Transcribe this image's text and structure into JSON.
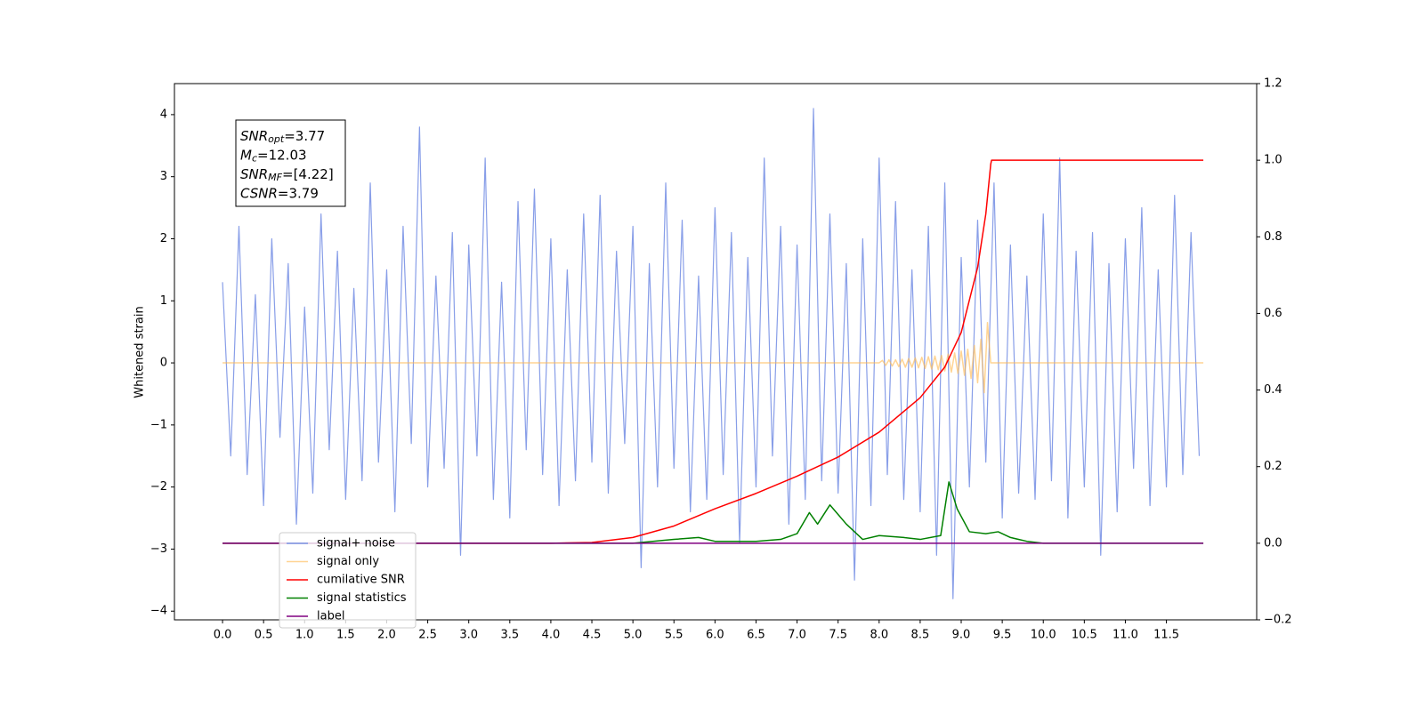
{
  "chart_data": {
    "type": "line",
    "ylabel": "Whitened strain",
    "annotation_lines": [
      {
        "main": "SNR",
        "sub": "opt",
        "rest": "=3.77"
      },
      {
        "main": "M",
        "sub": "c",
        "rest": "=12.03"
      },
      {
        "main": "SNR",
        "sub": "MF",
        "rest": "=[4.22]"
      },
      {
        "main": "CSNR",
        "rest": "=3.79"
      }
    ],
    "xlim": [
      -0.586,
      12.6
    ],
    "ylim": [
      -4.14,
      4.5
    ],
    "y2lim": [
      -0.2,
      1.2
    ],
    "xticks": [
      {
        "value": 0,
        "label": "0.0"
      },
      0.5,
      {
        "value": 1,
        "label": "1.0"
      },
      1.5,
      {
        "value": 2,
        "label": "2.0"
      },
      2.5,
      {
        "value": 3,
        "label": "3.0"
      },
      3.5,
      {
        "value": 4,
        "label": "4.0"
      },
      4.5,
      {
        "value": 5,
        "label": "5.0"
      },
      5.5,
      {
        "value": 6,
        "label": "6.0"
      },
      6.5,
      {
        "value": 7,
        "label": "7.0"
      },
      7.5,
      {
        "value": 8,
        "label": "8.0"
      },
      8.5,
      {
        "value": 9,
        "label": "9.0"
      },
      9.5,
      {
        "value": 10,
        "label": "10.0"
      },
      10.5,
      {
        "value": 11,
        "label": "11.0"
      },
      11.5
    ],
    "yticks": [
      {
        "value": -4,
        "label": "−4"
      },
      {
        "value": -3,
        "label": "−3"
      },
      {
        "value": -2,
        "label": "−2"
      },
      {
        "value": -1,
        "label": "−1"
      },
      0,
      1,
      2,
      3,
      4
    ],
    "y2ticks": [
      {
        "value": -0.2,
        "label": "−0.2"
      },
      {
        "value": 0,
        "label": "0.0"
      },
      0.2,
      0.4,
      0.6,
      0.8,
      {
        "value": 1,
        "label": "1.0"
      },
      1.2
    ],
    "series": [
      {
        "name": "signal+ noise",
        "color": "#7b93e6",
        "x": [
          0,
          0.1,
          0.2,
          0.3,
          0.4,
          0.5,
          0.6,
          0.7,
          0.8,
          0.9,
          1,
          1.1,
          1.2,
          1.3,
          1.4,
          1.5,
          1.6,
          1.7,
          1.8,
          1.9,
          2,
          2.1,
          2.2,
          2.3,
          2.4,
          2.5,
          2.6,
          2.7,
          2.8,
          2.9,
          3,
          3.1,
          3.2,
          3.3,
          3.4,
          3.5,
          3.6,
          3.7,
          3.8,
          3.9,
          4,
          4.1,
          4.2,
          4.3,
          4.4,
          4.5,
          4.6,
          4.7,
          4.8,
          4.9,
          5,
          5.1,
          5.2,
          5.3,
          5.4,
          5.5,
          5.6,
          5.7,
          5.8,
          5.9,
          6,
          6.1,
          6.2,
          6.3,
          6.4,
          6.5,
          6.6,
          6.7,
          6.8,
          6.9,
          7,
          7.1,
          7.2,
          7.3,
          7.4,
          7.5,
          7.6,
          7.7,
          7.8,
          7.9,
          8,
          8.1,
          8.2,
          8.3,
          8.4,
          8.5,
          8.6,
          8.7,
          8.8,
          8.9,
          9,
          9.1,
          9.2,
          9.3,
          9.4,
          9.5,
          9.6,
          9.7,
          9.8,
          9.9,
          10,
          10.1,
          10.2,
          10.3,
          10.4,
          10.5,
          10.6,
          10.7,
          10.8,
          10.9,
          11,
          11.1,
          11.2,
          11.3,
          11.4,
          11.5,
          11.6,
          11.7,
          11.8,
          11.9
        ],
        "values": [
          1.3,
          -1.5,
          2.2,
          -1.8,
          1.1,
          -2.3,
          2.0,
          -1.2,
          1.6,
          -2.6,
          0.9,
          -2.1,
          2.4,
          -1.4,
          1.8,
          -2.2,
          1.2,
          -1.9,
          2.9,
          -1.6,
          1.5,
          -2.4,
          2.2,
          -1.3,
          3.8,
          -2.0,
          1.4,
          -1.7,
          2.1,
          -3.1,
          1.9,
          -1.5,
          3.3,
          -2.2,
          1.3,
          -2.5,
          2.6,
          -1.4,
          2.8,
          -1.8,
          2.0,
          -2.3,
          1.5,
          -1.9,
          2.4,
          -1.6,
          2.7,
          -2.1,
          1.8,
          -1.3,
          2.2,
          -3.3,
          1.6,
          -2.0,
          2.9,
          -1.7,
          2.3,
          -2.4,
          1.4,
          -2.2,
          2.5,
          -1.8,
          2.1,
          -2.9,
          1.7,
          -2.0,
          3.3,
          -1.5,
          2.2,
          -2.6,
          1.9,
          -2.2,
          4.1,
          -1.9,
          2.4,
          -2.1,
          1.6,
          -3.5,
          2.0,
          -2.3,
          3.3,
          -1.8,
          2.6,
          -2.2,
          1.5,
          -2.4,
          2.2,
          -3.1,
          2.9,
          -3.8,
          1.7,
          -2.0,
          2.3,
          -1.6,
          2.9,
          -2.5,
          1.9,
          -2.1,
          1.4,
          -2.2,
          2.4,
          -1.9,
          3.3,
          -2.5,
          1.8,
          -2.0,
          2.1,
          -3.1,
          1.6,
          -2.4,
          2.0,
          -1.7,
          2.5,
          -2.3,
          1.5,
          -2.0,
          2.7,
          -1.8,
          2.1,
          -1.5
        ]
      },
      {
        "name": "signal only",
        "color": "#ffb84d",
        "x": [
          0,
          8,
          8.04,
          8.08,
          8.12,
          8.16,
          8.2,
          8.24,
          8.28,
          8.32,
          8.36,
          8.4,
          8.44,
          8.48,
          8.52,
          8.56,
          8.6,
          8.64,
          8.68,
          8.72,
          8.76,
          8.8,
          8.84,
          8.88,
          8.92,
          8.96,
          9,
          9.04,
          9.08,
          9.12,
          9.16,
          9.2,
          9.24,
          9.28,
          9.32,
          9.36,
          11.95
        ],
        "values": [
          0,
          0,
          0.04,
          -0.04,
          0.05,
          -0.05,
          0.05,
          -0.06,
          0.06,
          -0.07,
          0.07,
          -0.07,
          0.08,
          -0.08,
          0.09,
          -0.09,
          0.1,
          -0.1,
          0.11,
          -0.11,
          0.12,
          -0.13,
          0.14,
          -0.15,
          0.16,
          -0.17,
          0.19,
          -0.2,
          0.22,
          -0.25,
          0.28,
          -0.32,
          0.38,
          -0.48,
          0.65,
          0,
          0
        ]
      },
      {
        "name": "cumilative SNR",
        "color": "#ff0000",
        "axis": "y2",
        "x": [
          0,
          4,
          4.5,
          5,
          5.5,
          6,
          6.5,
          7,
          7.5,
          8,
          8.5,
          8.8,
          9,
          9.2,
          9.3,
          9.36,
          9.37,
          11.95
        ],
        "values": [
          0,
          0,
          0.002,
          0.015,
          0.045,
          0.09,
          0.13,
          0.175,
          0.225,
          0.29,
          0.38,
          0.46,
          0.55,
          0.72,
          0.86,
          0.99,
          1.0,
          1.0
        ]
      },
      {
        "name": "signal statistics",
        "color": "#008000",
        "axis": "y2",
        "x": [
          0,
          5,
          5.5,
          5.8,
          6,
          6.5,
          6.8,
          7,
          7.15,
          7.25,
          7.4,
          7.5,
          7.6,
          7.8,
          8,
          8.3,
          8.5,
          8.75,
          8.85,
          8.95,
          9.1,
          9.3,
          9.45,
          9.6,
          9.8,
          10,
          11.95
        ],
        "values": [
          0,
          0,
          0.01,
          0.015,
          0.005,
          0.005,
          0.01,
          0.025,
          0.08,
          0.05,
          0.1,
          0.075,
          0.05,
          0.01,
          0.02,
          0.015,
          0.01,
          0.02,
          0.16,
          0.09,
          0.03,
          0.025,
          0.03,
          0.015,
          0.005,
          0,
          0
        ]
      },
      {
        "name": "label",
        "color": "#800080",
        "axis": "y2",
        "x": [
          0,
          11.95
        ],
        "values": [
          0,
          0
        ]
      }
    ]
  }
}
